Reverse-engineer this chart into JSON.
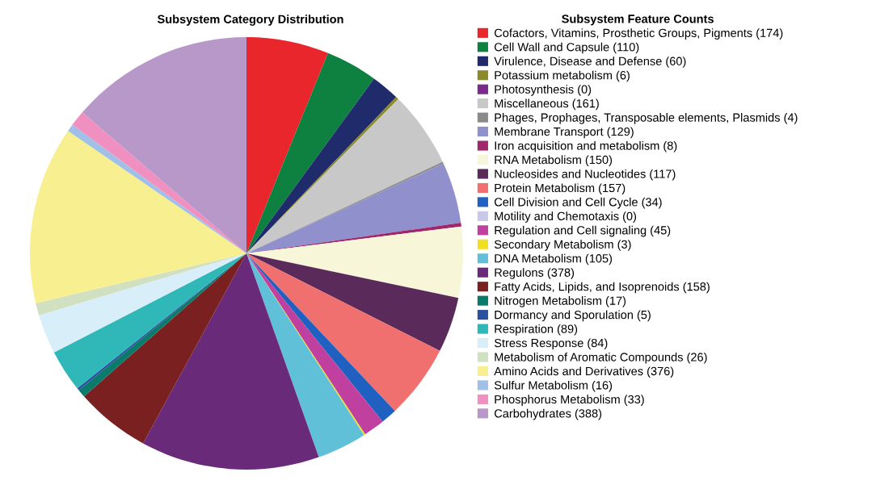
{
  "chart_data": {
    "type": "pie",
    "title": "Subsystem Category Distribution",
    "legend_title": "Subsystem Feature Counts",
    "legend": "right",
    "categories": [
      "Cofactors, Vitamins, Prosthetic Groups, Pigments (174)",
      "Cell Wall and Capsule (110)",
      "Virulence, Disease and Defense (60)",
      "Potassium metabolism (6)",
      "Photosynthesis (0)",
      "Miscellaneous (161)",
      "Phages, Prophages, Transposable elements, Plasmids (4)",
      "Membrane Transport (129)",
      "Iron acquisition and metabolism (8)",
      "RNA Metabolism (150)",
      "Nucleosides and Nucleotides (117)",
      "Protein Metabolism (157)",
      "Cell Division and Cell Cycle (34)",
      "Motility and Chemotaxis (0)",
      "Regulation and Cell signaling (45)",
      "Secondary Metabolism (3)",
      "DNA Metabolism (105)",
      "Regulons (378)",
      "Fatty Acids, Lipids, and Isoprenoids (158)",
      "Nitrogen Metabolism (17)",
      "Dormancy and Sporulation (5)",
      "Respiration (89)",
      "Stress Response (84)",
      "Metabolism of Aromatic Compounds (26)",
      "Amino Acids and Derivatives (376)",
      "Sulfur Metabolism (16)",
      "Phosphorus Metabolism (33)",
      "Carbohydrates (388)"
    ],
    "values": [
      174,
      110,
      60,
      6,
      0,
      161,
      4,
      129,
      8,
      150,
      117,
      157,
      34,
      0,
      45,
      3,
      105,
      378,
      158,
      17,
      5,
      89,
      84,
      26,
      376,
      16,
      33,
      388
    ],
    "colors": [
      "#e8262b",
      "#0e8040",
      "#1f2b6a",
      "#8a8a2a",
      "#7a2a8a",
      "#c8c8c8",
      "#8a8a8a",
      "#9090cc",
      "#a0286a",
      "#f8f6d8",
      "#5a2a5a",
      "#f07070",
      "#2060c0",
      "#c8c8e8",
      "#c040a0",
      "#f0e020",
      "#60c0d8",
      "#6a2a7a",
      "#7a2020",
      "#0a7a6a",
      "#2a50a0",
      "#30b8b8",
      "#d8eef8",
      "#d0e0c0",
      "#f8f090",
      "#a0c0e8",
      "#f090c0",
      "#b898c8"
    ]
  }
}
